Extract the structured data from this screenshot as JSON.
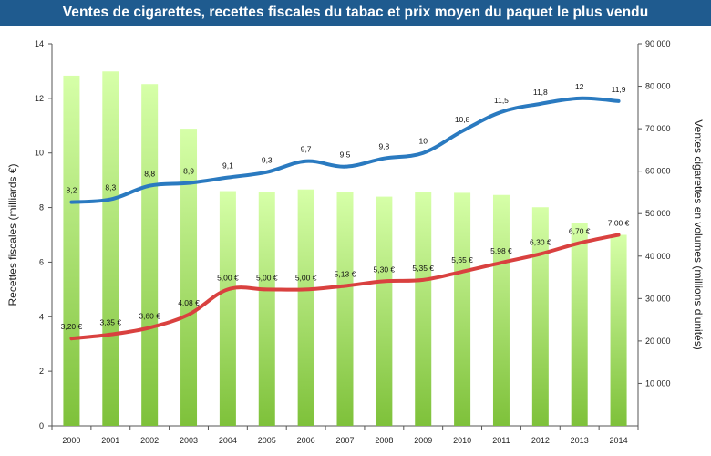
{
  "chart_data": {
    "type": "bar",
    "title": "Ventes de cigarettes, recettes fiscales du tabac et prix moyen du paquet le plus vendu",
    "categories": [
      "2000",
      "2001",
      "2002",
      "2003",
      "2004",
      "2005",
      "2006",
      "2007",
      "2008",
      "2009",
      "2010",
      "2011",
      "2012",
      "2013",
      "2014"
    ],
    "ylabel_left": "Recettes fiscales (milliards €)",
    "ylabel_right": "Ventes cigarettes en volumes (millions d'unités)",
    "ylim_left": [
      0,
      14
    ],
    "ylim_right": [
      0,
      90000
    ],
    "left_ticks": [
      "0",
      "2",
      "4",
      "6",
      "8",
      "10",
      "12",
      "14"
    ],
    "right_ticks": [
      "10 000",
      "20 000",
      "30 000",
      "40 000",
      "50 000",
      "60 000",
      "70 000",
      "80 000",
      "90 000"
    ],
    "series": [
      {
        "name": "Ventes cigarettes (millions d'unités)",
        "kind": "bar",
        "axis": "right",
        "values": [
          82500,
          83500,
          80500,
          70000,
          55300,
          55000,
          55700,
          55000,
          54000,
          55000,
          54900,
          54400,
          51500,
          47700,
          45000
        ]
      },
      {
        "name": "Recettes fiscales (milliards €)",
        "kind": "line",
        "axis": "left",
        "color": "#2a7ac0",
        "values": [
          8.2,
          8.3,
          8.8,
          8.9,
          9.1,
          9.3,
          9.7,
          9.5,
          9.8,
          10,
          10.8,
          11.5,
          11.8,
          12,
          11.9
        ],
        "labels": [
          "8,2",
          "8,3",
          "8,8",
          "8,9",
          "9,1",
          "9,3",
          "9,7",
          "9,5",
          "9,8",
          "10",
          "10,8",
          "11,5",
          "11,8",
          "12",
          "11,9"
        ]
      },
      {
        "name": "Prix moyen du paquet le plus vendu (€)",
        "kind": "line",
        "axis": "left",
        "color": "#d9413f",
        "values": [
          3.2,
          3.35,
          3.6,
          4.08,
          5.0,
          5.0,
          5.0,
          5.13,
          5.3,
          5.35,
          5.65,
          5.98,
          6.3,
          6.7,
          7.0
        ],
        "labels": [
          "3,20 €",
          "3,35 €",
          "3,60 €",
          "4,08 €",
          "5,00 €",
          "5,00 €",
          "5,00 €",
          "5,13 €",
          "5,30 €",
          "5,35 €",
          "5,65 €",
          "5,98 €",
          "6,30 €",
          "6,70 €",
          "7,00 €"
        ]
      }
    ],
    "colors": {
      "banner": "#1f5b8f",
      "bar_top": "#d6ffa8",
      "bar_bottom": "#7ec13a",
      "axis": "#555555"
    }
  }
}
